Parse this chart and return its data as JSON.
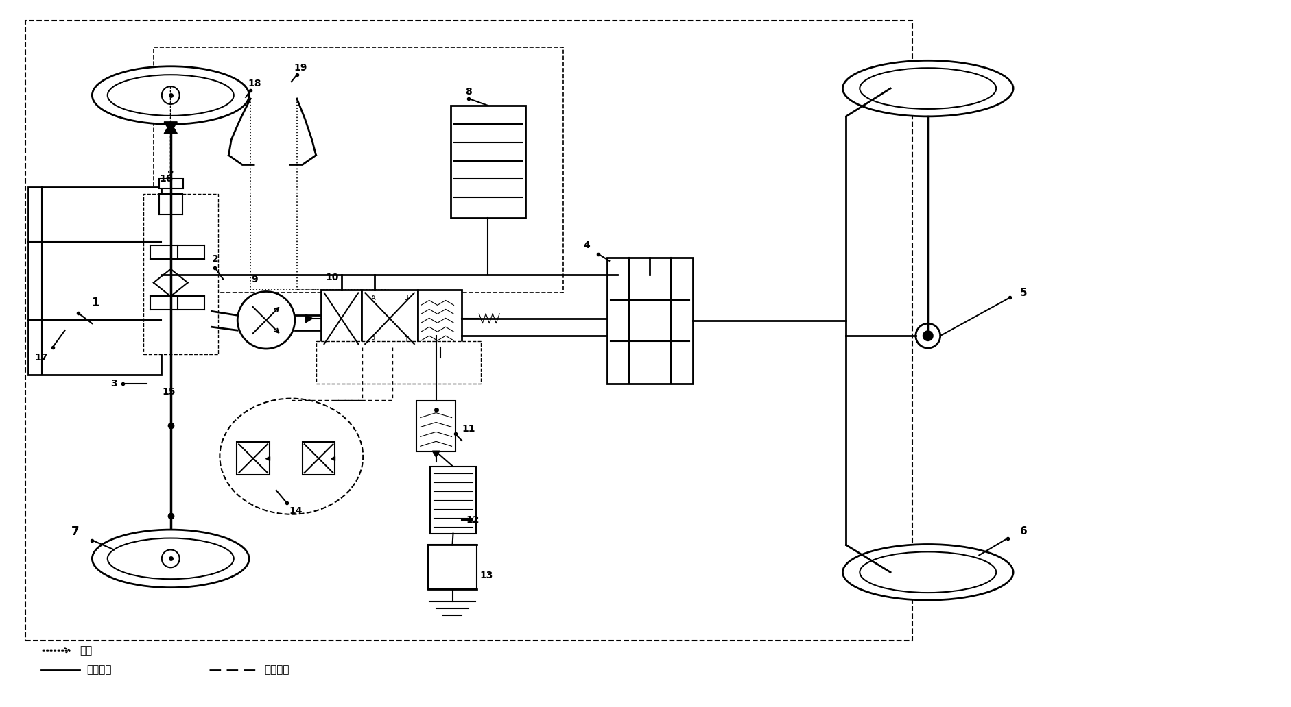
{
  "bg_color": "#ffffff",
  "fig_width": 18.83,
  "fig_height": 10.32,
  "legend": {
    "wire_control": "线控",
    "mechanical": "机械连接",
    "hydraulic": "液压连接"
  }
}
